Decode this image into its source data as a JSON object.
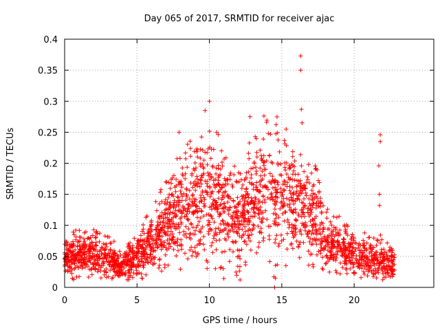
{
  "chart_data": {
    "type": "scatter",
    "title": "Day 065 of 2017, SRMTID for receiver ajac",
    "xlabel": "GPS time / hours",
    "ylabel": "SRMTID / TECUs",
    "xlim": [
      0,
      25.5
    ],
    "ylim": [
      0,
      0.4
    ],
    "xticks": [
      0,
      5,
      10,
      15,
      20
    ],
    "xtick_labels": [
      "0",
      "5",
      "10",
      "15",
      "20"
    ],
    "yticks": [
      0,
      0.05,
      0.1,
      0.15,
      0.2,
      0.25,
      0.3,
      0.35,
      0.4
    ],
    "ytick_labels": [
      "0",
      "0.05",
      "0.1",
      "0.15",
      "0.2",
      "0.25",
      "0.3",
      "0.35",
      "0.4"
    ],
    "grid": true,
    "marker": "plus",
    "color": "#ff0000",
    "envelope": {
      "description": "approximate central trend of the dense point cloud",
      "x": [
        0,
        1,
        2,
        3,
        3.8,
        5,
        6,
        7,
        8,
        9,
        10,
        11,
        12,
        13,
        14,
        15,
        16,
        16.6,
        17.5,
        18,
        19,
        20,
        21,
        22,
        22.8
      ],
      "y": [
        0.045,
        0.05,
        0.05,
        0.045,
        0.035,
        0.045,
        0.07,
        0.09,
        0.12,
        0.13,
        0.14,
        0.13,
        0.1,
        0.13,
        0.15,
        0.14,
        0.12,
        0.12,
        0.1,
        0.07,
        0.06,
        0.05,
        0.045,
        0.04,
        0.035
      ]
    },
    "notable_points": [
      {
        "x": 7.9,
        "y": 0.25
      },
      {
        "x": 9.7,
        "y": 0.285
      },
      {
        "x": 10.0,
        "y": 0.3
      },
      {
        "x": 10.5,
        "y": 0.25
      },
      {
        "x": 12.8,
        "y": 0.275
      },
      {
        "x": 15.3,
        "y": 0.255
      },
      {
        "x": 16.3,
        "y": 0.373
      },
      {
        "x": 16.3,
        "y": 0.35
      },
      {
        "x": 16.35,
        "y": 0.287
      },
      {
        "x": 16.4,
        "y": 0.265
      },
      {
        "x": 21.8,
        "y": 0.246
      },
      {
        "x": 21.8,
        "y": 0.235
      },
      {
        "x": 21.7,
        "y": 0.196
      },
      {
        "x": 21.75,
        "y": 0.15
      },
      {
        "x": 21.75,
        "y": 0.132
      },
      {
        "x": 14.5,
        "y": 0.0
      }
    ],
    "x_coverage": [
      0,
      22.8
    ],
    "point_count": 2400
  }
}
